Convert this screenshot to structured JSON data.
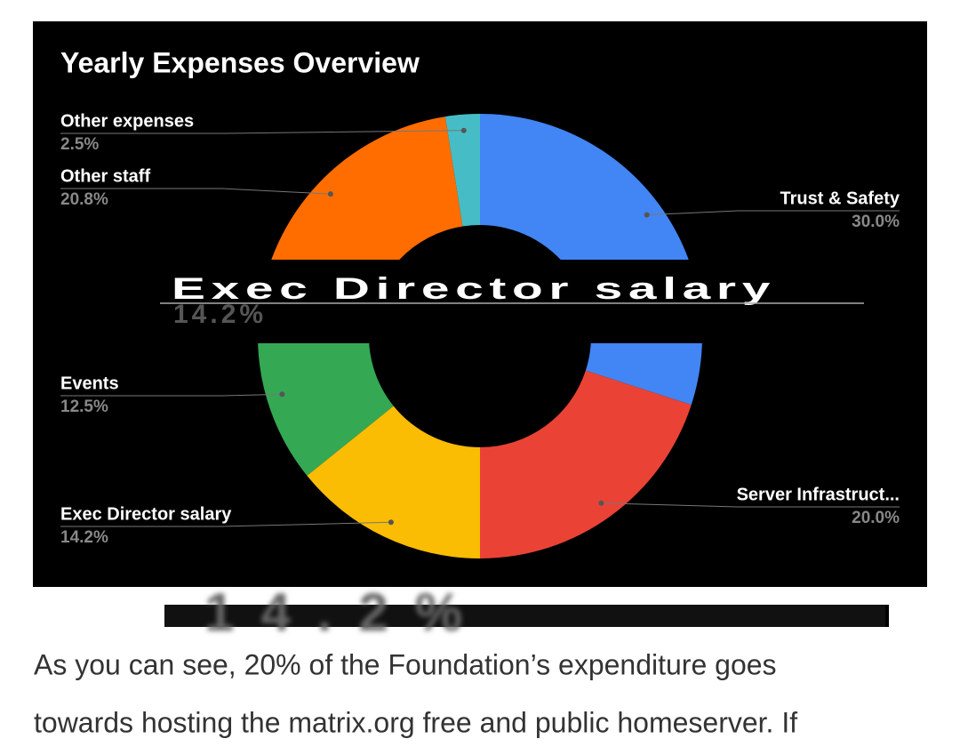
{
  "chart_data": {
    "type": "donut",
    "title": "Yearly Expenses Overview",
    "categories": [
      "Trust & Safety",
      "Server Infrastruct...",
      "Exec Director salary",
      "Events",
      "Other staff",
      "Other expenses"
    ],
    "values": [
      30.0,
      20.0,
      14.2,
      12.5,
      20.8,
      2.5
    ],
    "value_labels": [
      "30.0%",
      "20.0%",
      "14.2%",
      "12.5%",
      "20.8%",
      "2.5%"
    ],
    "colors": [
      "#4285f4",
      "#ea4335",
      "#fbbc04",
      "#34a853",
      "#ff6d01",
      "#46bdc6"
    ]
  },
  "overlay": {
    "label": "Exec Director salary",
    "value": "14.2%"
  },
  "banner_text": "14.2%",
  "article": {
    "lines": [
      "As you can see, 20% of the Foundation’s expenditure goes",
      "towards hosting the matrix.org free and public homeserver. If"
    ]
  }
}
